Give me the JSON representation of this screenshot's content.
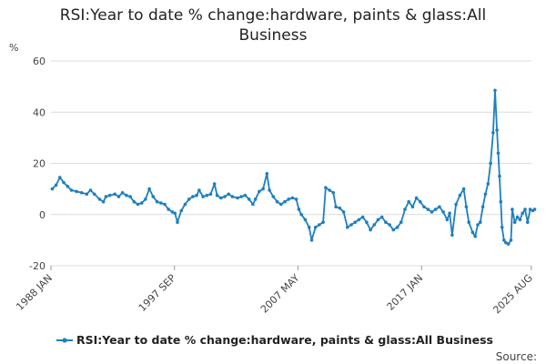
{
  "chart_data": {
    "type": "line",
    "title_line1": "RSI:Year to date % change:hardware, paints & glass:All",
    "title_line2": "Business",
    "unit": "%",
    "ylim": [
      -20,
      60
    ],
    "y_ticks": [
      "60",
      "40",
      "20",
      "0",
      "-20"
    ],
    "x_ticks": [
      "1988 JAN",
      "1997 SEP",
      "2007 MAY",
      "2017 JAN",
      "2025 AUG"
    ],
    "grid": true,
    "legend_position": "bottom",
    "series": [
      {
        "name": "RSI:Year to date % change:hardware, paints & glass:All Business",
        "color": "#1f7fbf",
        "points": [
          [
            1988.1,
            10.0
          ],
          [
            1988.4,
            11.5
          ],
          [
            1988.7,
            14.5
          ],
          [
            1989.0,
            12.5
          ],
          [
            1989.3,
            11.0
          ],
          [
            1989.6,
            9.5
          ],
          [
            1990.0,
            9.0
          ],
          [
            1990.4,
            8.5
          ],
          [
            1990.8,
            8.0
          ],
          [
            1991.1,
            9.5
          ],
          [
            1991.4,
            8.0
          ],
          [
            1991.8,
            6.0
          ],
          [
            1992.1,
            5.0
          ],
          [
            1992.3,
            7.0
          ],
          [
            1992.6,
            7.5
          ],
          [
            1993.0,
            8.0
          ],
          [
            1993.3,
            7.0
          ],
          [
            1993.6,
            8.5
          ],
          [
            1993.9,
            7.5
          ],
          [
            1994.2,
            7.0
          ],
          [
            1994.5,
            5.0
          ],
          [
            1994.8,
            4.0
          ],
          [
            1995.1,
            4.5
          ],
          [
            1995.4,
            6.0
          ],
          [
            1995.7,
            10.0
          ],
          [
            1996.0,
            7.0
          ],
          [
            1996.3,
            5.0
          ],
          [
            1996.6,
            4.5
          ],
          [
            1996.9,
            4.0
          ],
          [
            1997.2,
            2.0
          ],
          [
            1997.5,
            1.0
          ],
          [
            1997.7,
            0.5
          ],
          [
            1997.9,
            -3.0
          ],
          [
            1998.2,
            1.5
          ],
          [
            1998.5,
            4.0
          ],
          [
            1998.8,
            6.0
          ],
          [
            1999.1,
            7.0
          ],
          [
            1999.4,
            7.5
          ],
          [
            1999.6,
            9.5
          ],
          [
            1999.9,
            7.0
          ],
          [
            2000.2,
            7.5
          ],
          [
            2000.5,
            8.0
          ],
          [
            2000.8,
            12.0
          ],
          [
            2001.0,
            7.5
          ],
          [
            2001.3,
            6.5
          ],
          [
            2001.6,
            7.0
          ],
          [
            2001.9,
            8.0
          ],
          [
            2002.2,
            7.0
          ],
          [
            2002.6,
            6.5
          ],
          [
            2002.9,
            7.0
          ],
          [
            2003.2,
            7.5
          ],
          [
            2003.5,
            6.0
          ],
          [
            2003.8,
            4.0
          ],
          [
            2004.0,
            6.0
          ],
          [
            2004.3,
            9.0
          ],
          [
            2004.6,
            10.0
          ],
          [
            2004.9,
            16.0
          ],
          [
            2005.1,
            9.5
          ],
          [
            2005.4,
            7.0
          ],
          [
            2005.7,
            5.0
          ],
          [
            2006.0,
            4.0
          ],
          [
            2006.3,
            5.0
          ],
          [
            2006.6,
            6.0
          ],
          [
            2006.9,
            6.5
          ],
          [
            2007.2,
            6.0
          ],
          [
            2007.4,
            2.0
          ],
          [
            2007.6,
            0.0
          ],
          [
            2007.9,
            -2.0
          ],
          [
            2008.2,
            -5.0
          ],
          [
            2008.4,
            -10.0
          ],
          [
            2008.7,
            -5.0
          ],
          [
            2009.0,
            -4.0
          ],
          [
            2009.3,
            -3.0
          ],
          [
            2009.5,
            10.5
          ],
          [
            2009.8,
            9.5
          ],
          [
            2010.1,
            8.5
          ],
          [
            2010.3,
            3.0
          ],
          [
            2010.6,
            2.5
          ],
          [
            2010.9,
            1.0
          ],
          [
            2011.2,
            -5.0
          ],
          [
            2011.5,
            -4.0
          ],
          [
            2011.8,
            -3.0
          ],
          [
            2012.1,
            -2.0
          ],
          [
            2012.4,
            -1.0
          ],
          [
            2012.7,
            -3.0
          ],
          [
            2013.0,
            -6.0
          ],
          [
            2013.3,
            -4.0
          ],
          [
            2013.6,
            -2.0
          ],
          [
            2013.9,
            -1.0
          ],
          [
            2014.2,
            -3.0
          ],
          [
            2014.5,
            -4.0
          ],
          [
            2014.8,
            -6.0
          ],
          [
            2015.1,
            -5.0
          ],
          [
            2015.4,
            -3.0
          ],
          [
            2015.7,
            2.0
          ],
          [
            2016.0,
            5.0
          ],
          [
            2016.3,
            3.0
          ],
          [
            2016.6,
            6.5
          ],
          [
            2016.9,
            5.0
          ],
          [
            2017.2,
            3.0
          ],
          [
            2017.5,
            2.0
          ],
          [
            2017.8,
            1.0
          ],
          [
            2018.1,
            2.0
          ],
          [
            2018.4,
            3.0
          ],
          [
            2018.7,
            1.0
          ],
          [
            2019.0,
            -2.0
          ],
          [
            2019.2,
            0.5
          ],
          [
            2019.4,
            -8.0
          ],
          [
            2019.7,
            4.0
          ],
          [
            2020.0,
            7.5
          ],
          [
            2020.3,
            10.0
          ],
          [
            2020.5,
            3.0
          ],
          [
            2020.7,
            -3.0
          ],
          [
            2021.0,
            -7.0
          ],
          [
            2021.2,
            -8.5
          ],
          [
            2021.4,
            -4.0
          ],
          [
            2021.6,
            -3.0
          ],
          [
            2021.8,
            3.0
          ],
          [
            2022.0,
            8.0
          ],
          [
            2022.2,
            12.0
          ],
          [
            2022.4,
            20.0
          ],
          [
            2022.6,
            32.0
          ],
          [
            2022.75,
            48.5
          ],
          [
            2022.9,
            33.0
          ],
          [
            2023.0,
            24.0
          ],
          [
            2023.1,
            15.0
          ],
          [
            2023.2,
            5.0
          ],
          [
            2023.3,
            -5.0
          ],
          [
            2023.45,
            -10.0
          ],
          [
            2023.6,
            -11.0
          ],
          [
            2023.8,
            -11.5
          ],
          [
            2024.0,
            -10.0
          ],
          [
            2024.1,
            2.0
          ],
          [
            2024.3,
            -3.0
          ],
          [
            2024.5,
            -1.0
          ],
          [
            2024.7,
            -2.0
          ],
          [
            2024.9,
            0.5
          ],
          [
            2025.1,
            2.0
          ],
          [
            2025.3,
            -3.0
          ],
          [
            2025.5,
            2.0
          ],
          [
            2025.7,
            1.5
          ],
          [
            2025.85,
            2.0
          ]
        ]
      }
    ]
  },
  "source_label": "Source:"
}
